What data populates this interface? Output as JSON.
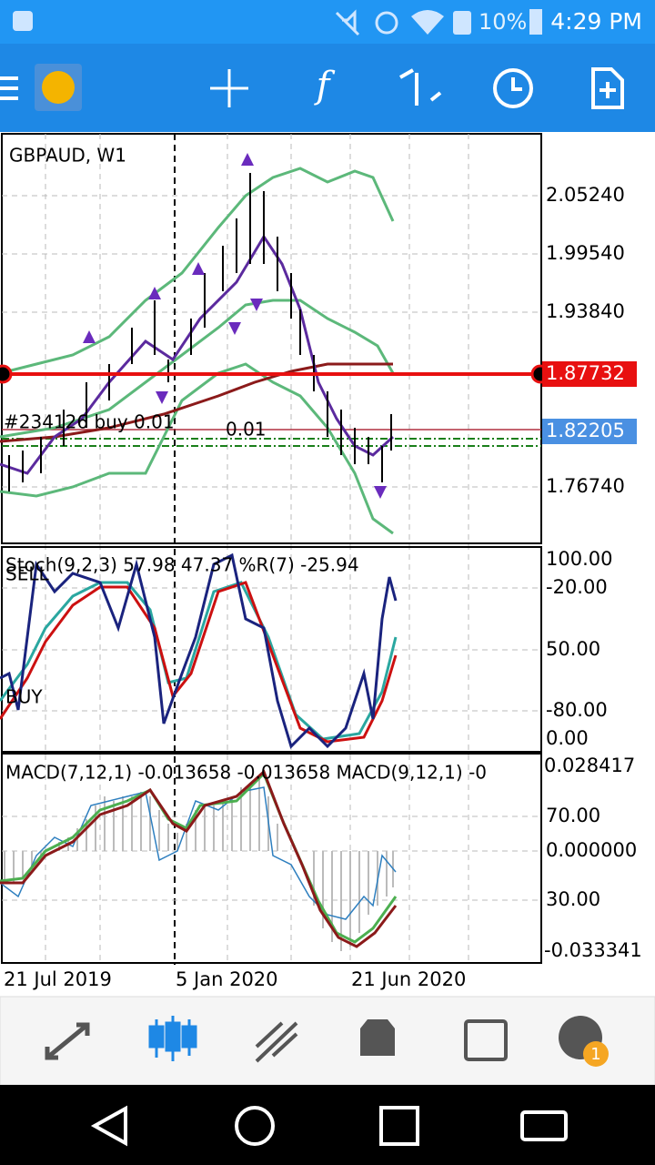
{
  "status_bar": {
    "battery": "10%",
    "time": "4:29 PM"
  },
  "chart": {
    "title": "GBPAUD, W1",
    "price_labels": [
      "2.05240",
      "1.99540",
      "1.93840",
      "1.76740"
    ],
    "line_price_red": "1.87732",
    "bid_price": "1.82205",
    "order_text": "#234126 buy 0.01",
    "order_text_2": "0.01"
  },
  "stoch_panel": {
    "title": "Stoch(9,2,3) 57.98 47.37 %R(7) -25.94",
    "sell": "SELL",
    "buy": "BUY",
    "labels": [
      "100.00",
      "-20.00",
      "50.00",
      "-80.00",
      "0.00"
    ]
  },
  "macd_panel": {
    "title": "MACD(7,12,1) -0.013658 -0.013658 MACD(9,12,1) -0",
    "labels": [
      "0.028417",
      "70.00",
      "0.000000",
      "30.00",
      "-0.033341"
    ]
  },
  "dates": [
    "21 Jul 2019",
    "5 Jan 2020",
    "21 Jun 2020"
  ],
  "bottom_nav": {
    "badge": "1"
  }
}
